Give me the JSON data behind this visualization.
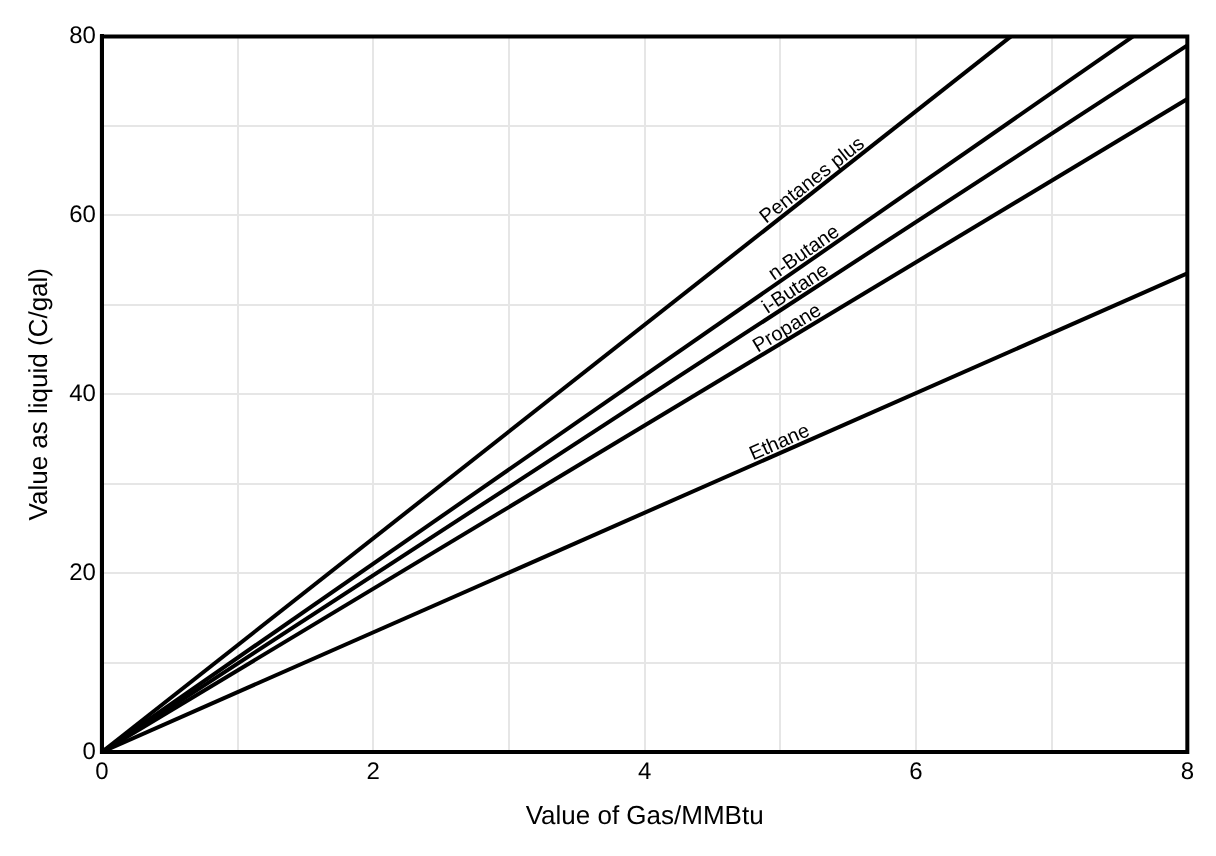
{
  "chart_data": {
    "type": "line",
    "xlabel": "Value of Gas/MMBtu",
    "ylabel": "Value as liquid (C/gal)",
    "series": [
      {
        "name": "Pentanes plus",
        "color": "#000000",
        "x": [
          0,
          6.7
        ],
        "values": [
          0,
          80
        ]
      },
      {
        "name": "n-Butane",
        "color": "#000000",
        "x": [
          0,
          7.6
        ],
        "values": [
          0,
          80
        ]
      },
      {
        "name": "i-Butane",
        "color": "#000000",
        "x": [
          0,
          8
        ],
        "values": [
          0,
          79
        ]
      },
      {
        "name": "Propane",
        "color": "#000000",
        "x": [
          0,
          8
        ],
        "values": [
          0,
          73
        ]
      },
      {
        "name": "Ethane",
        "color": "#000000",
        "x": [
          0,
          8
        ],
        "values": [
          0,
          53.5
        ]
      }
    ],
    "xlim": [
      0,
      8
    ],
    "ylim": [
      0,
      80
    ],
    "xticks": [
      0,
      {
        "value": 1,
        "label": null
      },
      2,
      {
        "value": 3,
        "label": null
      },
      4,
      {
        "value": 5,
        "label": null
      },
      6,
      {
        "value": 7,
        "label": null
      },
      8
    ],
    "yticks": [
      0,
      {
        "value": 10,
        "label": null
      },
      20,
      {
        "value": 30,
        "label": null
      },
      40,
      {
        "value": 50,
        "label": null
      },
      60,
      {
        "value": 70,
        "label": null
      },
      80
    ],
    "grid": true,
    "legend": false,
    "marker": "none",
    "line_style": "solid"
  }
}
